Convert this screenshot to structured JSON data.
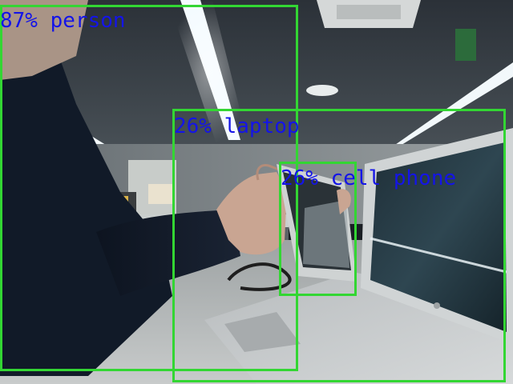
{
  "detections": [
    {
      "label": "person",
      "confidence_text": "87% person",
      "confidence": 0.87
    },
    {
      "label": "laptop",
      "confidence_text": "26% laptop",
      "confidence": 0.26
    },
    {
      "label": "cell phone",
      "confidence_text": "26% cell phone",
      "confidence": 0.26
    }
  ],
  "colors": {
    "box": "#33d633",
    "label": "#1414e8"
  }
}
